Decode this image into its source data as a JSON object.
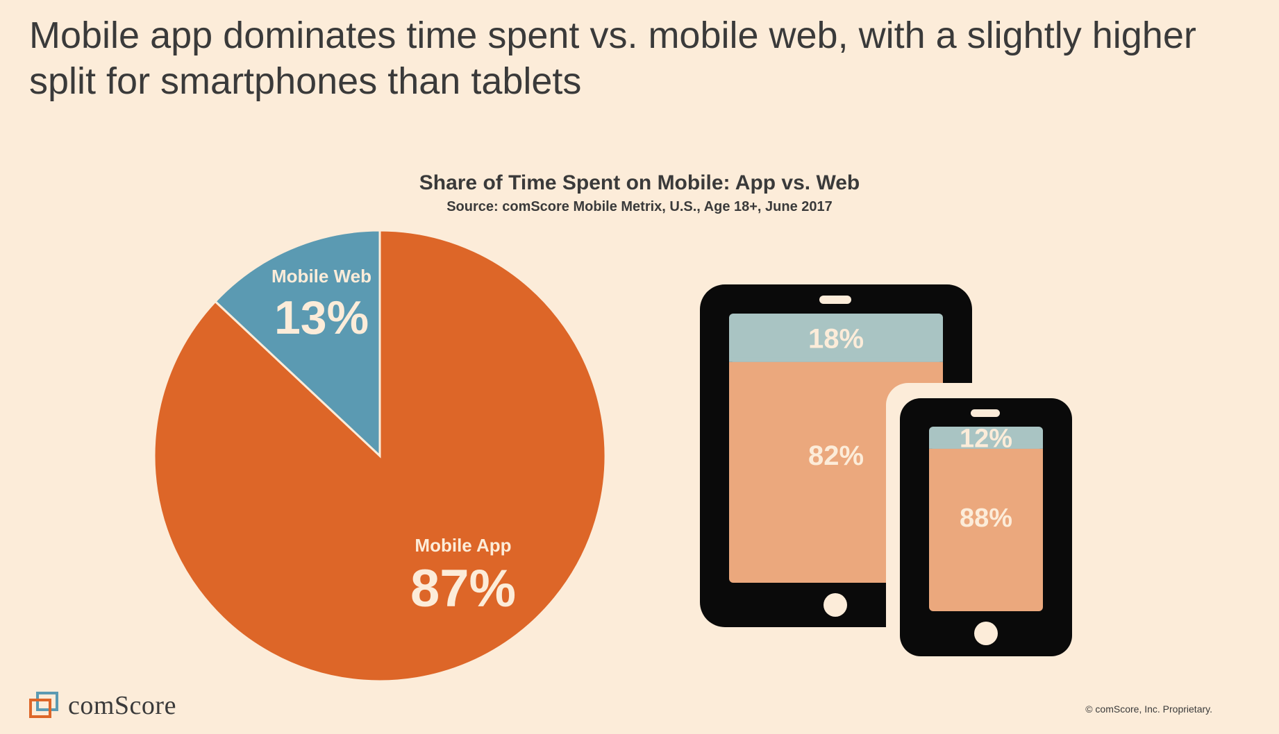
{
  "headline": "Mobile app dominates time spent vs. mobile web, with a slightly higher split for smartphones than tablets",
  "colors": {
    "background": "#fcecd9",
    "app": "#dd6628",
    "web": "#5b9ab2",
    "device_app": "#eba87d",
    "device_web": "#a9c4c3",
    "device_body": "#0a0a0a",
    "label_light": "#fcecd9"
  },
  "chart_data": [
    {
      "type": "pie",
      "title": "Share of Time Spent on Mobile: App vs. Web",
      "subtitle": "Source: comScore Mobile Metrix, U.S., Age 18+, June 2017",
      "slices": [
        {
          "name": "Mobile Web",
          "value": 13,
          "label": "13%"
        },
        {
          "name": "Mobile App",
          "value": 87,
          "label": "87%"
        }
      ]
    },
    {
      "type": "bar",
      "categories": [
        "tablet-icon",
        "smartphone-icon"
      ],
      "series": [
        {
          "name": "Mobile Web",
          "values": [
            18,
            12
          ],
          "labels": [
            "18%",
            "12%"
          ]
        },
        {
          "name": "Mobile App",
          "values": [
            82,
            88
          ],
          "labels": [
            "82%",
            "88%"
          ]
        }
      ],
      "stacked": true,
      "ylim": [
        0,
        100
      ]
    }
  ],
  "footer": {
    "logo_text": "comScore",
    "copyright": "© comScore, Inc. Proprietary."
  }
}
